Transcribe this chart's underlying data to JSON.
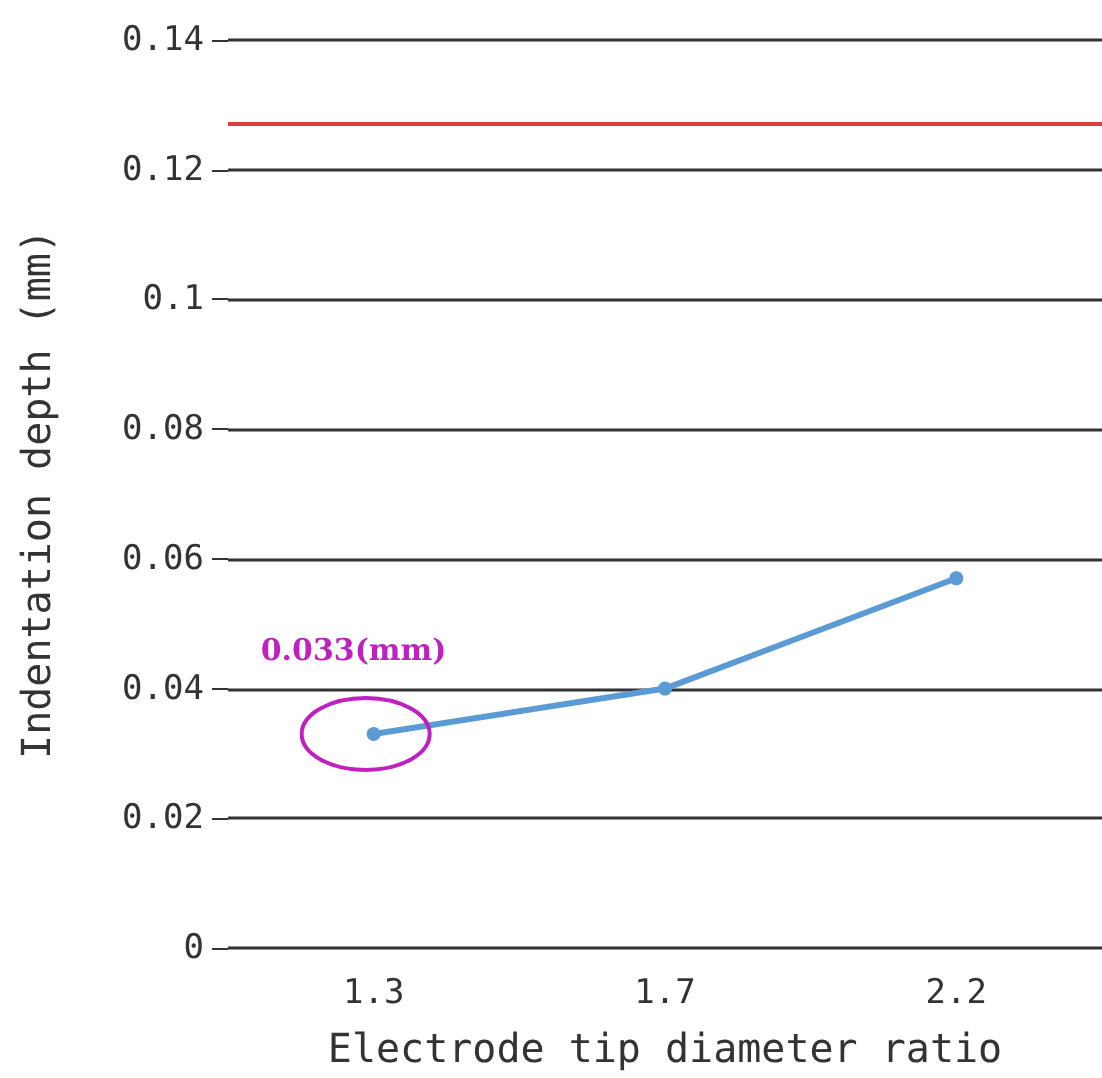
{
  "chart_data": {
    "type": "line",
    "xlabel": "Electrode tip diameter ratio",
    "ylabel": "Indentation depth (mm)",
    "categories": [
      "1.3",
      "1.7",
      "2.2"
    ],
    "series": [
      {
        "color": "#5b9bd5",
        "values": [
          0.033,
          0.04,
          0.057
        ]
      }
    ],
    "ylim": [
      0,
      0.14
    ],
    "yticks": [
      0,
      0.02,
      0.04,
      0.06,
      0.08,
      0.1,
      0.12,
      0.14
    ],
    "ref_lines": [
      {
        "axis": "y",
        "value": 0.127,
        "color": "#e03c3c"
      }
    ],
    "annotations": [
      {
        "text": "0.033(mm)",
        "x": "1.3",
        "y": 0.033
      }
    ],
    "grid": "y",
    "marker": "circle",
    "line_style": "solid"
  }
}
